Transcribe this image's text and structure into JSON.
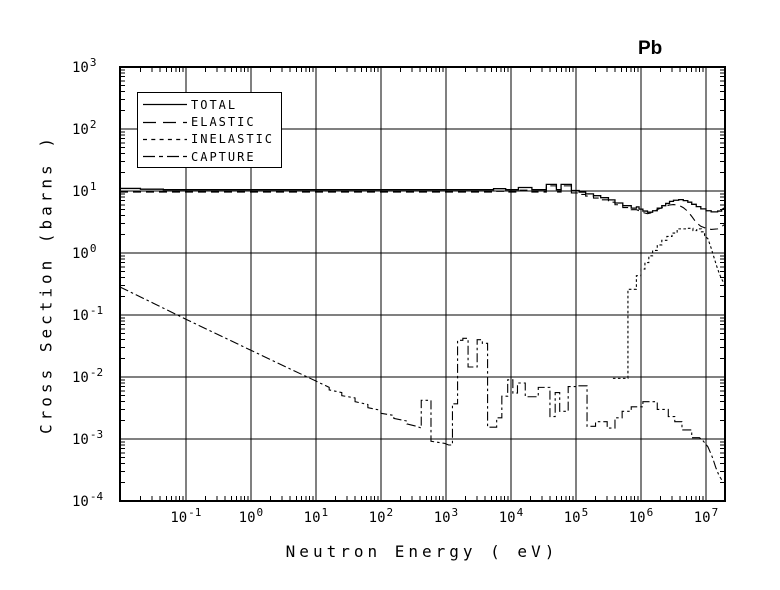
{
  "title": "Pb",
  "colors": {
    "foreground": "#000000",
    "background": "#ffffff"
  },
  "chart_data": {
    "type": "line",
    "title": "Pb",
    "xlabel": "Neutron Energy ( eV)",
    "ylabel": "Cross Section (barns )",
    "xscale": "log",
    "yscale": "log",
    "xlim": [
      0.0097,
      19600000.0
    ],
    "ylim": [
      0.0001,
      1000.0
    ],
    "x_tick_exponents": [
      -1,
      0,
      1,
      2,
      3,
      4,
      5,
      6,
      7
    ],
    "y_tick_exponents": [
      3,
      2,
      1,
      0,
      -1,
      -2,
      -3,
      -4
    ],
    "grid": true,
    "legend_position": "top-left",
    "units": {
      "x": "eV",
      "y": "barns"
    },
    "series": [
      {
        "name": "TOTAL",
        "style": "solid",
        "points": [
          [
            0.0097,
            11.0
          ],
          [
            0.02,
            11.0
          ],
          [
            0.02,
            10.7
          ],
          [
            0.045,
            10.7
          ],
          [
            0.045,
            10.5
          ],
          [
            3500,
            10.5
          ],
          [
            5400,
            10.5
          ],
          [
            5400,
            10.9
          ],
          [
            8300,
            10.9
          ],
          [
            8300,
            10.5
          ],
          [
            13000,
            10.5
          ],
          [
            13000,
            11.4
          ],
          [
            21000,
            11.4
          ],
          [
            21000,
            10.5
          ],
          [
            35000,
            10.5
          ],
          [
            35000,
            12.8
          ],
          [
            50000,
            12.8
          ],
          [
            50000,
            10.5
          ],
          [
            59000,
            10.5
          ],
          [
            59000,
            12.8
          ],
          [
            85000,
            12.8
          ],
          [
            85000,
            10.2
          ],
          [
            112000,
            10.2
          ],
          [
            112000,
            9.6
          ],
          [
            141000,
            9.6
          ],
          [
            141000,
            9.0
          ],
          [
            186000,
            9.0
          ],
          [
            186000,
            8.4
          ],
          [
            240000,
            8.4
          ],
          [
            240000,
            7.8
          ],
          [
            316000,
            7.8
          ],
          [
            316000,
            7.2
          ],
          [
            398000,
            7.2
          ],
          [
            398000,
            6.4
          ],
          [
            525000,
            6.4
          ],
          [
            525000,
            5.8
          ],
          [
            708000,
            5.8
          ],
          [
            708000,
            5.3
          ],
          [
            851000,
            5.3
          ],
          [
            851000,
            5.55
          ],
          [
            933000,
            5.55
          ],
          [
            933000,
            5.1
          ],
          [
            1070000.0,
            5.1
          ],
          [
            1070000.0,
            4.75
          ],
          [
            1260000.0,
            4.75
          ],
          [
            1260000.0,
            4.55
          ],
          [
            1510000.0,
            4.55
          ],
          [
            1510000.0,
            4.8
          ],
          [
            1780000.0,
            4.8
          ],
          [
            1780000.0,
            5.3
          ],
          [
            2090000.0,
            5.3
          ],
          [
            2090000.0,
            5.8
          ],
          [
            2400000.0,
            5.8
          ],
          [
            2400000.0,
            6.3
          ],
          [
            2750000.0,
            6.3
          ],
          [
            2750000.0,
            6.8
          ],
          [
            3160000.0,
            6.8
          ],
          [
            3160000.0,
            7.1
          ],
          [
            3800000.0,
            7.1
          ],
          [
            3800000.0,
            7.25
          ],
          [
            4470000.0,
            7.25
          ],
          [
            4470000.0,
            7.0
          ],
          [
            5250000.0,
            7.0
          ],
          [
            5250000.0,
            6.6
          ],
          [
            6030000.0,
            6.6
          ],
          [
            6030000.0,
            6.1
          ],
          [
            7080000.0,
            6.1
          ],
          [
            7080000.0,
            5.6
          ],
          [
            8320000.0,
            5.6
          ],
          [
            8320000.0,
            5.15
          ],
          [
            10000000.0,
            5.15
          ],
          [
            10000000.0,
            4.8
          ],
          [
            12000000.0,
            4.8
          ],
          [
            12000000.0,
            4.6
          ],
          [
            15100000.0,
            4.6
          ],
          [
            15100000.0,
            4.75
          ],
          [
            17400000.0,
            4.75
          ],
          [
            17400000.0,
            5.0
          ],
          [
            19600000.0,
            5.4
          ]
        ]
      },
      {
        "name": "ELASTIC",
        "style": "long-dash",
        "points": [
          [
            0.0097,
            9.6
          ],
          [
            3500,
            9.6
          ],
          [
            5400,
            9.6
          ],
          [
            5400,
            9.9
          ],
          [
            8300,
            9.9
          ],
          [
            8300,
            9.6
          ],
          [
            13000,
            9.6
          ],
          [
            13000,
            10.3
          ],
          [
            21000,
            10.3
          ],
          [
            21000,
            9.6
          ],
          [
            35000,
            9.6
          ],
          [
            35000,
            12.1
          ],
          [
            50000,
            12.1
          ],
          [
            50000,
            9.6
          ],
          [
            59000,
            9.6
          ],
          [
            59000,
            12.1
          ],
          [
            85000,
            12.1
          ],
          [
            85000,
            9.3
          ],
          [
            112000,
            9.3
          ],
          [
            112000,
            8.8
          ],
          [
            141000,
            8.8
          ],
          [
            141000,
            8.3
          ],
          [
            186000,
            8.3
          ],
          [
            186000,
            7.7
          ],
          [
            240000,
            7.7
          ],
          [
            240000,
            7.2
          ],
          [
            316000,
            7.2
          ],
          [
            316000,
            6.6
          ],
          [
            398000,
            6.6
          ],
          [
            398000,
            6.0
          ],
          [
            525000,
            6.0
          ],
          [
            525000,
            5.4
          ],
          [
            708000,
            5.4
          ],
          [
            708000,
            5.0
          ],
          [
            851000,
            5.0
          ],
          [
            933000,
            4.8
          ],
          [
            1070000.0,
            4.5
          ],
          [
            1260000.0,
            4.3
          ],
          [
            1510000.0,
            4.5
          ],
          [
            1780000.0,
            5.0
          ],
          [
            2090000.0,
            5.4
          ],
          [
            2400000.0,
            5.7
          ],
          [
            2750000.0,
            5.95
          ],
          [
            3160000.0,
            6.05
          ],
          [
            3800000.0,
            5.9
          ],
          [
            4470000.0,
            5.4
          ],
          [
            5250000.0,
            4.7
          ],
          [
            6030000.0,
            3.9
          ],
          [
            7080000.0,
            3.1
          ],
          [
            8320000.0,
            2.7
          ],
          [
            10000000.0,
            2.5
          ],
          [
            12000000.0,
            2.4
          ],
          [
            15100000.0,
            2.45
          ],
          [
            19600000.0,
            2.9
          ]
        ]
      },
      {
        "name": "INELASTIC",
        "style": "short-dash",
        "points": [
          [
            370000.0,
            0.0095
          ],
          [
            630000.0,
            0.0095
          ],
          [
            630000.0,
            0.26
          ],
          [
            850000.0,
            0.26
          ],
          [
            850000.0,
            0.43
          ],
          [
            1000000.0,
            0.43
          ],
          [
            1000000.0,
            0.55
          ],
          [
            1150000.0,
            0.55
          ],
          [
            1150000.0,
            0.7
          ],
          [
            1320000.0,
            0.7
          ],
          [
            1320000.0,
            0.9
          ],
          [
            1510000.0,
            0.9
          ],
          [
            1510000.0,
            1.1
          ],
          [
            1780000.0,
            1.1
          ],
          [
            1780000.0,
            1.35
          ],
          [
            2090000.0,
            1.35
          ],
          [
            2090000.0,
            1.6
          ],
          [
            2500000.0,
            1.6
          ],
          [
            2500000.0,
            1.85
          ],
          [
            3000000.0,
            1.85
          ],
          [
            3000000.0,
            2.1
          ],
          [
            3600000.0,
            2.1
          ],
          [
            3600000.0,
            2.45
          ],
          [
            5250000.0,
            2.45
          ],
          [
            5250000.0,
            2.5
          ],
          [
            6300000.0,
            2.5
          ],
          [
            6300000.0,
            2.3
          ],
          [
            7200000.0,
            2.3
          ],
          [
            7200000.0,
            2.45
          ],
          [
            8500000.0,
            2.45
          ],
          [
            8500000.0,
            2.2
          ],
          [
            9500000.0,
            2.2
          ],
          [
            9500000.0,
            1.9
          ],
          [
            10700000.0,
            1.7
          ],
          [
            12000000.0,
            1.2
          ],
          [
            13500000.0,
            0.8
          ],
          [
            15100000.0,
            0.55
          ],
          [
            17000000.0,
            0.4
          ],
          [
            19600000.0,
            0.3
          ]
        ]
      },
      {
        "name": "CAPTURE",
        "style": "dash-dot",
        "points": [
          [
            0.0097,
            0.283
          ],
          [
            0.0316,
            0.155
          ],
          [
            0.1,
            0.0855
          ],
          [
            0.316,
            0.048
          ],
          [
            1.0,
            0.027
          ],
          [
            3.16,
            0.0152
          ],
          [
            10,
            0.0086
          ],
          [
            16,
            0.0068
          ],
          [
            16,
            0.0062
          ],
          [
            25,
            0.0056
          ],
          [
            25,
            0.005
          ],
          [
            40,
            0.0046
          ],
          [
            40,
            0.004
          ],
          [
            63,
            0.0036
          ],
          [
            63,
            0.0032
          ],
          [
            100,
            0.0029
          ],
          [
            100,
            0.0026
          ],
          [
            158,
            0.0024
          ],
          [
            158,
            0.00215
          ],
          [
            251,
            0.00195
          ],
          [
            251,
            0.00175
          ],
          [
            355,
            0.0016
          ],
          [
            417,
            0.0015
          ],
          [
            417,
            0.0042
          ],
          [
            589,
            0.0042
          ],
          [
            589,
            0.00092
          ],
          [
            955,
            0.00085
          ],
          [
            1100,
            0.0008
          ],
          [
            1260,
            0.0008
          ],
          [
            1260,
            0.0037
          ],
          [
            1510,
            0.0037
          ],
          [
            1510,
            0.039
          ],
          [
            1820,
            0.039
          ],
          [
            1820,
            0.042
          ],
          [
            2190,
            0.042
          ],
          [
            2190,
            0.0145
          ],
          [
            3020,
            0.0145
          ],
          [
            3020,
            0.04
          ],
          [
            3630,
            0.04
          ],
          [
            3630,
            0.035
          ],
          [
            4370,
            0.035
          ],
          [
            4370,
            0.00155
          ],
          [
            6030,
            0.00155
          ],
          [
            6030,
            0.0022
          ],
          [
            7240,
            0.0022
          ],
          [
            7240,
            0.0049
          ],
          [
            8910,
            0.0049
          ],
          [
            8910,
            0.009
          ],
          [
            10700,
            0.009
          ],
          [
            10700,
            0.0055
          ],
          [
            12600,
            0.0055
          ],
          [
            12600,
            0.008
          ],
          [
            16600,
            0.008
          ],
          [
            16600,
            0.0048
          ],
          [
            26300,
            0.0048
          ],
          [
            26300,
            0.0068
          ],
          [
            39800,
            0.0068
          ],
          [
            39800,
            0.0023
          ],
          [
            47900,
            0.0023
          ],
          [
            47900,
            0.0056
          ],
          [
            56200,
            0.0056
          ],
          [
            56200,
            0.0028
          ],
          [
            75900,
            0.0028
          ],
          [
            75900,
            0.007
          ],
          [
            107000,
            0.007
          ],
          [
            107000,
            0.0072
          ],
          [
            148000,
            0.0072
          ],
          [
            148000,
            0.0016
          ],
          [
            200000,
            0.0016
          ],
          [
            200000,
            0.0019
          ],
          [
            302000,
            0.0019
          ],
          [
            302000,
            0.0015
          ],
          [
            398000,
            0.0015
          ],
          [
            398000,
            0.0022
          ],
          [
            513000,
            0.0022
          ],
          [
            513000,
            0.0028
          ],
          [
            708000,
            0.0028
          ],
          [
            708000,
            0.0033
          ],
          [
            1070000.0,
            0.0033
          ],
          [
            1070000.0,
            0.004
          ],
          [
            1780000.0,
            0.004
          ],
          [
            1780000.0,
            0.003
          ],
          [
            2630000.0,
            0.003
          ],
          [
            2630000.0,
            0.0023
          ],
          [
            3310000.0,
            0.0023
          ],
          [
            3310000.0,
            0.0019
          ],
          [
            4270000.0,
            0.0019
          ],
          [
            4270000.0,
            0.0014
          ],
          [
            6030000.0,
            0.0014
          ],
          [
            6030000.0,
            0.00105
          ],
          [
            7940000.0,
            0.00105
          ],
          [
            8900000.0,
            0.00095
          ],
          [
            10700000.0,
            0.00075
          ],
          [
            12600000.0,
            0.0005
          ],
          [
            14100000.0,
            0.00035
          ],
          [
            15800000.0,
            0.00026
          ],
          [
            17400000.0,
            0.00022
          ]
        ]
      }
    ]
  }
}
